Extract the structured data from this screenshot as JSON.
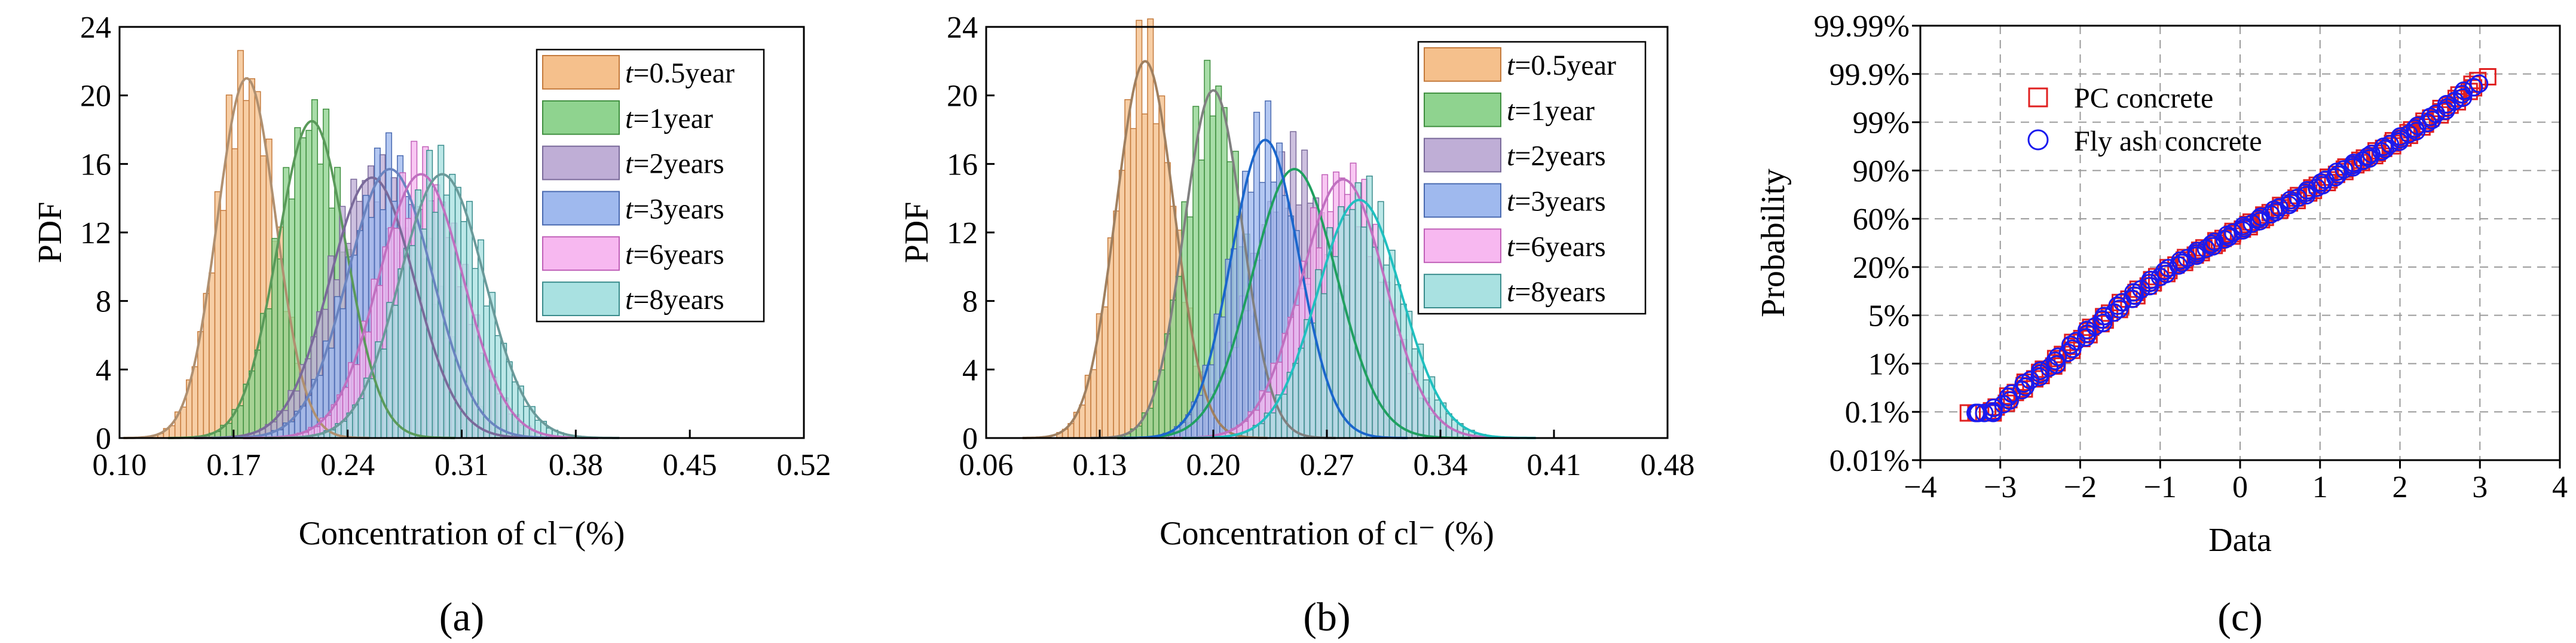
{
  "chart_data": [
    {
      "id": "a",
      "type": "histogram",
      "panel_label": "(a)",
      "xlabel": "Concentration of cl⁻(%)",
      "ylabel": "PDF",
      "xlim": [
        0.1,
        0.52
      ],
      "ylim": [
        0,
        24
      ],
      "xticks": [
        "0.10",
        "0.17",
        "0.24",
        "0.31",
        "0.38",
        "0.45",
        "0.52"
      ],
      "yticks": [
        "0",
        "4",
        "8",
        "12",
        "16",
        "20",
        "24"
      ],
      "legend_position": "top-right",
      "series": [
        {
          "name": "t=0.5year",
          "t_label": "t",
          "suffix": "=0.5year",
          "mean": 0.178,
          "peak": 21.0,
          "fill": "#f5c08c",
          "edge": "#c47a3c",
          "curve": "#b09070"
        },
        {
          "name": "t=1year",
          "t_label": "t",
          "suffix": "=1year",
          "mean": 0.218,
          "peak": 18.5,
          "fill": "#8fd38f",
          "edge": "#3f8f3f",
          "curve": "#5a9a5a"
        },
        {
          "name": "t=2years",
          "t_label": "t",
          "suffix": "=2years",
          "mean": 0.255,
          "peak": 15.2,
          "fill": "#bfaed6",
          "edge": "#7a6a9a",
          "curve": "#7a6a9a"
        },
        {
          "name": "t=3years",
          "t_label": "t",
          "suffix": "=3years",
          "mean": 0.266,
          "peak": 15.7,
          "fill": "#9fb9ee",
          "edge": "#4a6ab0",
          "curve": "#6a84c0"
        },
        {
          "name": "t=6years",
          "t_label": "t",
          "suffix": "=6years",
          "mean": 0.285,
          "peak": 15.4,
          "fill": "#f7b8f0",
          "edge": "#c060b8",
          "curve": "#c070c0"
        },
        {
          "name": "t=8years",
          "t_label": "t",
          "suffix": "=8years",
          "mean": 0.298,
          "peak": 15.4,
          "fill": "#a9e1e1",
          "edge": "#3a8c8c",
          "curve": "#6a9a9a"
        }
      ]
    },
    {
      "id": "b",
      "type": "histogram",
      "panel_label": "(b)",
      "xlabel": "Concentration of cl⁻ (%)",
      "ylabel": "PDF",
      "xlim": [
        0.06,
        0.48
      ],
      "ylim": [
        0,
        24
      ],
      "xticks": [
        "0.06",
        "0.13",
        "0.20",
        "0.27",
        "0.34",
        "0.41",
        "0.48"
      ],
      "yticks": [
        "0",
        "4",
        "8",
        "12",
        "16",
        "20",
        "24"
      ],
      "legend_position": "top-right",
      "series": [
        {
          "name": "t=0.5year",
          "t_label": "t",
          "suffix": "=0.5year",
          "mean": 0.158,
          "peak": 22.0,
          "fill": "#f5c08c",
          "edge": "#c47a3c",
          "curve": "#a08060"
        },
        {
          "name": "t=1year",
          "t_label": "t",
          "suffix": "=1year",
          "mean": 0.2,
          "peak": 20.3,
          "fill": "#8fd38f",
          "edge": "#3f8f3f",
          "curve": "#808080"
        },
        {
          "name": "t=2years",
          "t_label": "t",
          "suffix": "=2years",
          "mean": 0.25,
          "peak": 15.7,
          "fill": "#bfaed6",
          "edge": "#7a6a9a",
          "curve": "#20a060"
        },
        {
          "name": "t=3years",
          "t_label": "t",
          "suffix": "=3years",
          "mean": 0.232,
          "peak": 17.4,
          "fill": "#9fb9ee",
          "edge": "#4a6ab0",
          "curve": "#1a66cc"
        },
        {
          "name": "t=6years",
          "t_label": "t",
          "suffix": "=6years",
          "mean": 0.28,
          "peak": 15.1,
          "fill": "#f7b8f0",
          "edge": "#c060b8",
          "curve": "#c070c0"
        },
        {
          "name": "t=8years",
          "t_label": "t",
          "suffix": "=8years",
          "mean": 0.29,
          "peak": 13.9,
          "fill": "#a9e1e1",
          "edge": "#3a8c8c",
          "curve": "#20c0c0"
        }
      ]
    },
    {
      "id": "c",
      "type": "scatter",
      "subtype": "normal-probability-plot",
      "panel_label": "(c)",
      "xlabel": "Data",
      "ylabel": "Probability",
      "xlim": [
        -4,
        4
      ],
      "xticks": [
        "−4",
        "−3",
        "−2",
        "−1",
        "0",
        "1",
        "2",
        "3",
        "4"
      ],
      "yticks": [
        "0.01%",
        "0.1%",
        "1%",
        "5%",
        "20%",
        "60%",
        "90%",
        "99%",
        "99.9%",
        "99.99%"
      ],
      "ytick_probabilities": [
        0.0001,
        0.001,
        0.01,
        0.05,
        0.2,
        0.6,
        0.9,
        0.99,
        0.999,
        0.9999
      ],
      "grid": true,
      "legend_position": "top-left",
      "series": [
        {
          "name": "PC concrete",
          "marker": "square",
          "color": "#e02020",
          "x_min": -3.4,
          "x_max": 3.05
        },
        {
          "name": "Fly ash concrete",
          "marker": "circle",
          "color": "#1a1aee",
          "x_min": -3.35,
          "x_max": 2.95
        }
      ]
    }
  ]
}
